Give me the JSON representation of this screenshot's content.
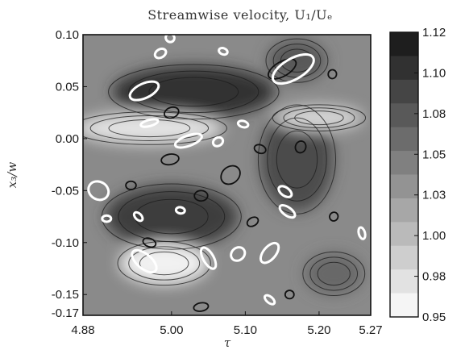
{
  "chart_data": {
    "type": "heatmap",
    "title": "Streamwise velocity, U₁/Uₑ",
    "xlabel": "τ",
    "ylabel": "x₃/w",
    "xlim": [
      4.88,
      5.27
    ],
    "ylim": [
      -0.17,
      0.1
    ],
    "xticks": [
      4.88,
      5.0,
      5.1,
      5.2,
      5.27
    ],
    "xtick_labels": [
      "4.88",
      "5.00",
      "5.10",
      "5.20",
      "5.27"
    ],
    "yticks": [
      0.1,
      0.05,
      0.0,
      -0.05,
      -0.1,
      -0.15,
      -0.17
    ],
    "ytick_labels": [
      "0.10",
      "0.05",
      "0.00",
      "-0.05",
      "-0.10",
      "-0.15",
      "-0.17"
    ],
    "colorbar": {
      "range": [
        0.95,
        1.12
      ],
      "ticks": [
        "1.12",
        "1.10",
        "1.08",
        "1.05",
        "1.03",
        "1.00",
        "0.98",
        "0.95"
      ],
      "levels": 12,
      "colormap": "white-to-black"
    },
    "grid": false,
    "regions": [
      {
        "x": 5.03,
        "y": 0.045,
        "rx": 0.11,
        "ry": 0.025,
        "level": 1.1
      },
      {
        "x": 5.0,
        "y": -0.075,
        "rx": 0.09,
        "ry": 0.03,
        "level": 1.09
      },
      {
        "x": 5.17,
        "y": -0.02,
        "rx": 0.05,
        "ry": 0.05,
        "level": 1.08
      },
      {
        "x": 5.17,
        "y": 0.075,
        "rx": 0.04,
        "ry": 0.02,
        "level": 1.07
      },
      {
        "x": 4.97,
        "y": 0.01,
        "rx": 0.1,
        "ry": 0.015,
        "level": 0.97
      },
      {
        "x": 4.99,
        "y": -0.12,
        "rx": 0.06,
        "ry": 0.02,
        "level": 0.96
      },
      {
        "x": 5.2,
        "y": 0.02,
        "rx": 0.06,
        "ry": 0.012,
        "level": 0.98
      },
      {
        "x": 5.22,
        "y": -0.13,
        "rx": 0.04,
        "ry": 0.02,
        "level": 1.06
      }
    ],
    "white_ellipses": [
      {
        "x": 4.998,
        "y": 0.097,
        "rx": 0.006,
        "ry": 0.004,
        "angle": -40
      },
      {
        "x": 4.985,
        "y": 0.082,
        "rx": 0.008,
        "ry": 0.004,
        "angle": 30
      },
      {
        "x": 5.07,
        "y": 0.084,
        "rx": 0.006,
        "ry": 0.003,
        "angle": -20
      },
      {
        "x": 5.165,
        "y": 0.067,
        "rx": 0.031,
        "ry": 0.01,
        "angle": 30
      },
      {
        "x": 4.963,
        "y": 0.046,
        "rx": 0.021,
        "ry": 0.007,
        "angle": 25
      },
      {
        "x": 4.97,
        "y": 0.015,
        "rx": 0.012,
        "ry": 0.003,
        "angle": 15
      },
      {
        "x": 5.023,
        "y": -0.002,
        "rx": 0.019,
        "ry": 0.005,
        "angle": 20
      },
      {
        "x": 5.063,
        "y": -0.003,
        "rx": 0.007,
        "ry": 0.004,
        "angle": 30
      },
      {
        "x": 5.097,
        "y": 0.014,
        "rx": 0.007,
        "ry": 0.003,
        "angle": -15
      },
      {
        "x": 4.901,
        "y": -0.05,
        "rx": 0.012,
        "ry": 0.01,
        "angle": 60
      },
      {
        "x": 5.154,
        "y": -0.051,
        "rx": 0.01,
        "ry": 0.004,
        "angle": -35
      },
      {
        "x": 5.157,
        "y": -0.07,
        "rx": 0.012,
        "ry": 0.004,
        "angle": -35
      },
      {
        "x": 4.955,
        "y": -0.075,
        "rx": 0.007,
        "ry": 0.003,
        "angle": -45
      },
      {
        "x": 5.012,
        "y": -0.069,
        "rx": 0.006,
        "ry": 0.003,
        "angle": -10
      },
      {
        "x": 4.912,
        "y": -0.077,
        "rx": 0.006,
        "ry": 0.003,
        "angle": 0
      },
      {
        "x": 5.258,
        "y": -0.091,
        "rx": 0.008,
        "ry": 0.003,
        "angle": -75
      },
      {
        "x": 4.963,
        "y": -0.118,
        "rx": 0.02,
        "ry": 0.007,
        "angle": -40
      },
      {
        "x": 5.05,
        "y": -0.115,
        "rx": 0.016,
        "ry": 0.005,
        "angle": -60
      },
      {
        "x": 5.09,
        "y": -0.111,
        "rx": 0.01,
        "ry": 0.006,
        "angle": 40
      },
      {
        "x": 5.133,
        "y": -0.11,
        "rx": 0.016,
        "ry": 0.006,
        "angle": 50
      },
      {
        "x": 5.133,
        "y": -0.155,
        "rx": 0.008,
        "ry": 0.003,
        "angle": -40
      }
    ],
    "black_ellipses": [
      {
        "x": 5.15,
        "y": 0.067,
        "rx": 0.021,
        "ry": 0.007,
        "angle": 30
      },
      {
        "x": 5.0,
        "y": 0.025,
        "rx": 0.01,
        "ry": 0.005,
        "angle": 20
      },
      {
        "x": 4.998,
        "y": -0.02,
        "rx": 0.012,
        "ry": 0.005,
        "angle": 10
      },
      {
        "x": 5.08,
        "y": -0.035,
        "rx": 0.014,
        "ry": 0.008,
        "angle": 40
      },
      {
        "x": 5.175,
        "y": -0.008,
        "rx": 0.008,
        "ry": 0.005,
        "angle": 70
      },
      {
        "x": 4.945,
        "y": -0.045,
        "rx": 0.007,
        "ry": 0.004,
        "angle": 0
      },
      {
        "x": 5.04,
        "y": -0.055,
        "rx": 0.009,
        "ry": 0.005,
        "angle": 0
      },
      {
        "x": 5.12,
        "y": -0.01,
        "rx": 0.008,
        "ry": 0.004,
        "angle": -20
      },
      {
        "x": 5.11,
        "y": -0.08,
        "rx": 0.008,
        "ry": 0.004,
        "angle": 30
      },
      {
        "x": 5.22,
        "y": -0.075,
        "rx": 0.006,
        "ry": 0.004,
        "angle": 60
      },
      {
        "x": 5.218,
        "y": 0.062,
        "rx": 0.006,
        "ry": 0.004,
        "angle": 80
      },
      {
        "x": 5.04,
        "y": -0.162,
        "rx": 0.01,
        "ry": 0.004,
        "angle": 10
      },
      {
        "x": 4.97,
        "y": -0.1,
        "rx": 0.009,
        "ry": 0.004,
        "angle": -20
      },
      {
        "x": 5.16,
        "y": -0.15,
        "rx": 0.006,
        "ry": 0.004,
        "angle": 0
      }
    ]
  }
}
